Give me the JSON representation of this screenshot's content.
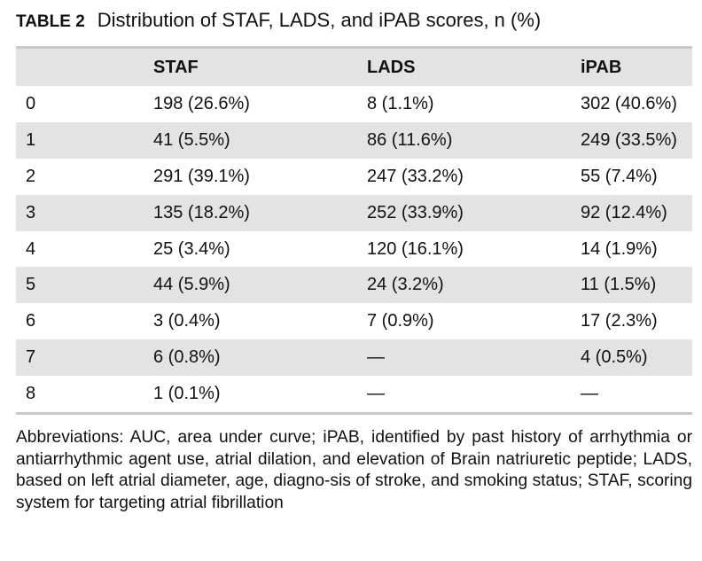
{
  "caption": {
    "label": "TABLE 2",
    "title": "Distribution of STAF, LADS, and iPAB scores, n (%)"
  },
  "table": {
    "headers": [
      "",
      "STAF",
      "LADS",
      "iPAB"
    ],
    "rows": [
      [
        "0",
        "198 (26.6%)",
        "8 (1.1%)",
        "302 (40.6%)"
      ],
      [
        "1",
        "41 (5.5%)",
        "86 (11.6%)",
        "249 (33.5%)"
      ],
      [
        "2",
        "291 (39.1%)",
        "247 (33.2%)",
        "55 (7.4%)"
      ],
      [
        "3",
        "135 (18.2%)",
        "252 (33.9%)",
        "92 (12.4%)"
      ],
      [
        "4",
        "25 (3.4%)",
        "120 (16.1%)",
        "14 (1.9%)"
      ],
      [
        "5",
        "44 (5.9%)",
        "24 (3.2%)",
        "11 (1.5%)"
      ],
      [
        "6",
        "3 (0.4%)",
        "7 (0.9%)",
        "17 (2.3%)"
      ],
      [
        "7",
        "6 (0.8%)",
        "—",
        "4 (0.5%)"
      ],
      [
        "8",
        "1 (0.1%)",
        "—",
        "—"
      ]
    ]
  },
  "footnote": "Abbreviations: AUC, area under curve; iPAB, identified by past history of arrhythmia or antiarrhythmic agent use, atrial dilation, and elevation of Brain natriuretic peptide; LADS, based on left atrial diameter, age, diagno-sis of stroke, and smoking status; STAF, scoring system for targeting atrial fibrillation"
}
